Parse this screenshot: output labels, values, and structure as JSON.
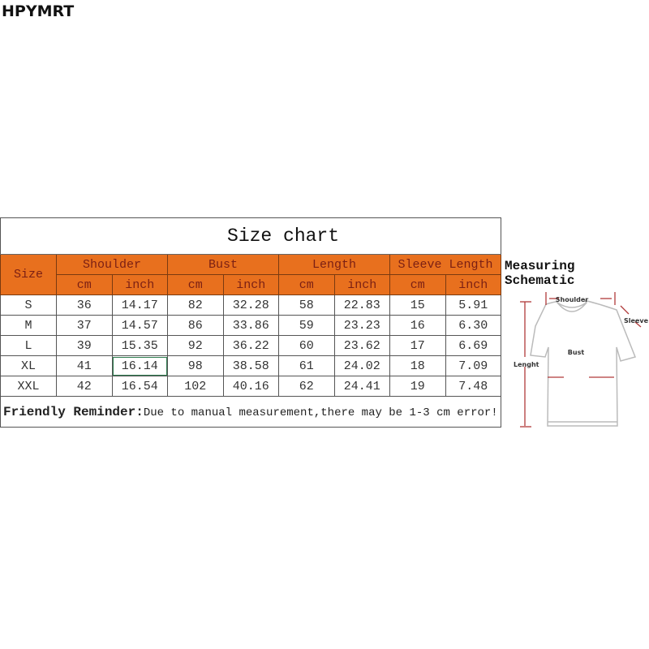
{
  "brand": "HPYMRT",
  "table": {
    "title": "Size chart",
    "size_header": "Size",
    "groups": [
      "Shoulder",
      "Bust",
      "Length",
      "Sleeve Length"
    ],
    "units": [
      "cm",
      "inch"
    ],
    "rows": [
      [
        "S",
        "36",
        "14.17",
        "82",
        "32.28",
        "58",
        "22.83",
        "15",
        "5.91"
      ],
      [
        "M",
        "37",
        "14.57",
        "86",
        "33.86",
        "59",
        "23.23",
        "16",
        "6.30"
      ],
      [
        "L",
        "39",
        "15.35",
        "92",
        "36.22",
        "60",
        "23.62",
        "17",
        "6.69"
      ],
      [
        "XL",
        "41",
        "16.14",
        "98",
        "38.58",
        "61",
        "24.02",
        "18",
        "7.09"
      ],
      [
        "XXL",
        "42",
        "16.54",
        "102",
        "40.16",
        "62",
        "24.41",
        "19",
        "7.48"
      ]
    ],
    "reminder_label": "Friendly Reminder:",
    "reminder_text": "Due to manual measurement,there may be 1-3 cm error!"
  },
  "schematic": {
    "title": "Measuring Schematic",
    "labels": {
      "shoulder": "Shoulder",
      "sleeve": "Sleeve",
      "bust": "Bust",
      "length": "Lenght"
    }
  },
  "colors": {
    "header": "#e8701e",
    "arrow": "#b03a3a"
  }
}
